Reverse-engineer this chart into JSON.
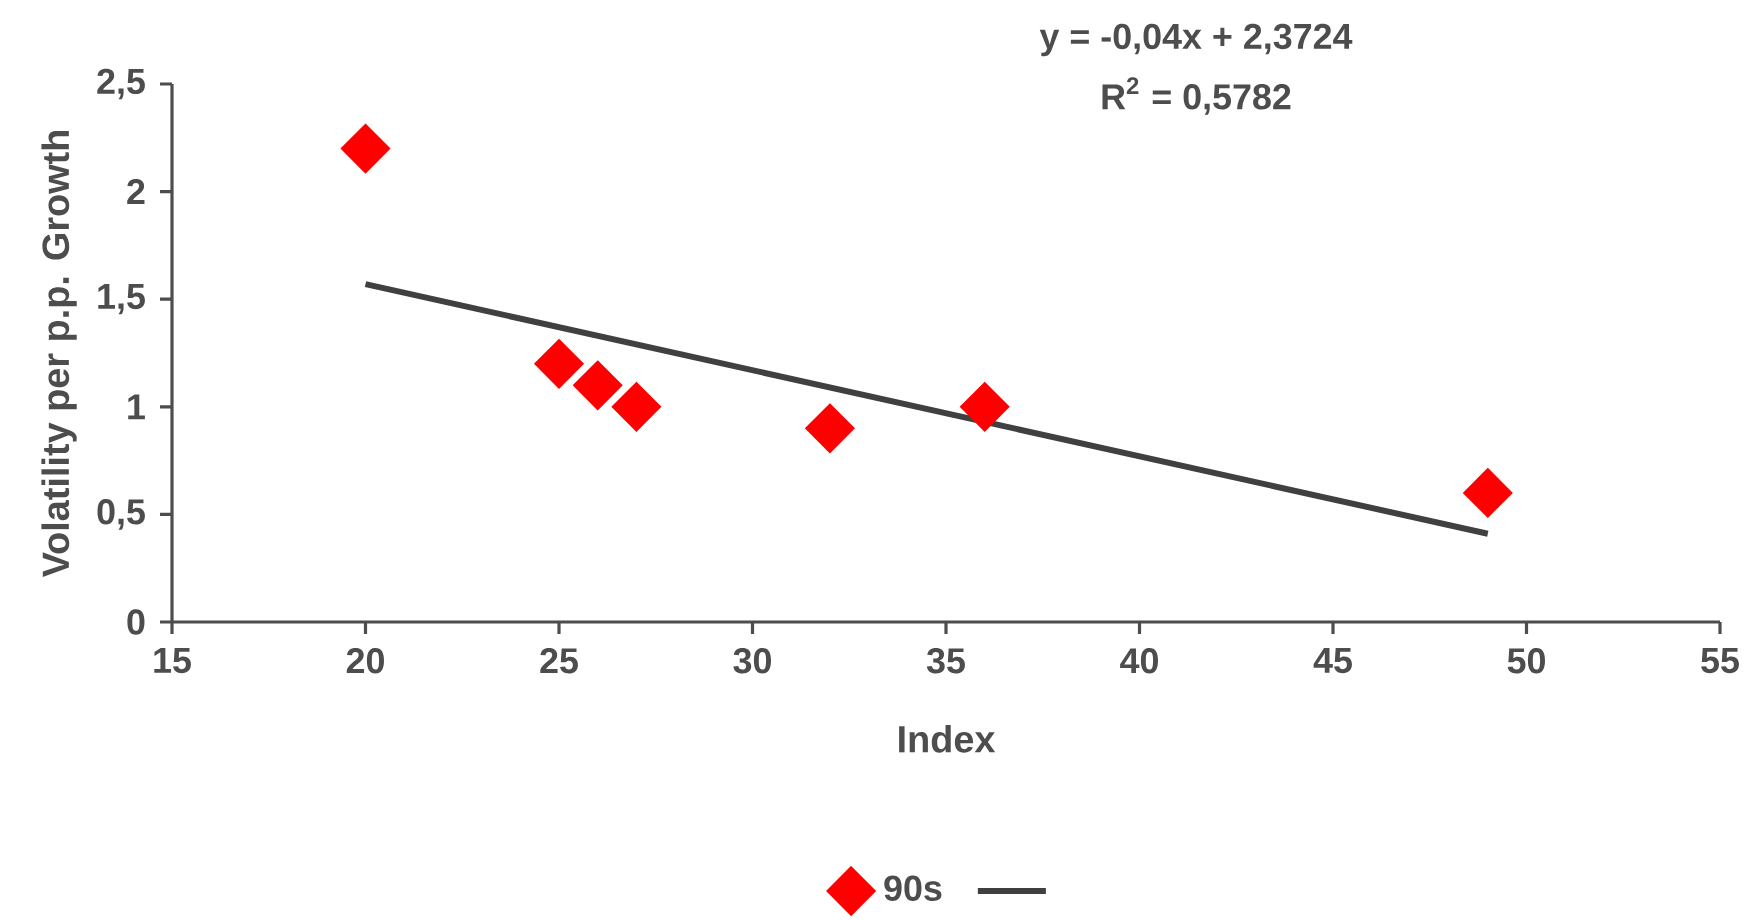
{
  "chart_data": {
    "type": "scatter",
    "xlabel": "Index",
    "ylabel": "Volatility per p.p. Growth",
    "annotations": [
      "y = -0,04x + 2,3724",
      "R$^{2}$ = 0,5782"
    ],
    "xlim": [
      15,
      55
    ],
    "xticks": [
      15,
      20,
      25,
      30,
      35,
      40,
      45,
      50,
      55
    ],
    "ylim": [
      0,
      2.5
    ],
    "yticks": [
      0,
      {
        "value": 0.5,
        "label": "0,5"
      },
      1,
      {
        "value": 1.5,
        "label": "1,5"
      },
      2,
      {
        "value": 2.5,
        "label": "2,5"
      }
    ],
    "marker": "diamond",
    "legend": "bottom",
    "series": [
      {
        "name": "90s",
        "color": "#ff0000",
        "x": [
          20,
          25,
          26,
          27,
          32,
          36,
          49
        ],
        "values": [
          2.2,
          1.2,
          1.1,
          1.0,
          0.9,
          1.0,
          0.6
        ]
      },
      {
        "type": "line",
        "marker": "none",
        "color": "#404040",
        "x": [
          20,
          49
        ],
        "values": [
          1.57,
          0.41
        ]
      }
    ]
  }
}
